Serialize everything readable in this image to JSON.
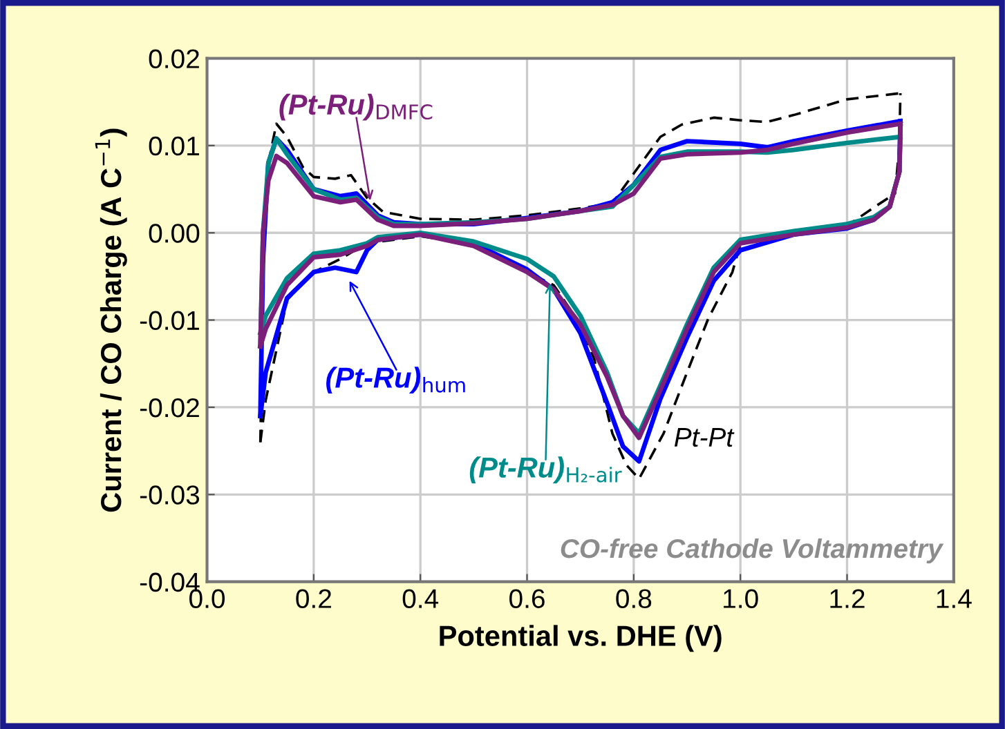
{
  "chart_data": {
    "type": "line",
    "xlabel": "Potential vs. DHE (V)",
    "ylabel": "Current / CO Charge (A C$^{−1}$)",
    "xlim": [
      0.0,
      1.4
    ],
    "ylim": [
      -0.04,
      0.02
    ],
    "xticks": [
      {
        "value": 0.0,
        "label": "0.0"
      },
      {
        "value": 0.2,
        "label": "0.2"
      },
      {
        "value": 0.4,
        "label": "0.4"
      },
      {
        "value": 0.6,
        "label": "0.6"
      },
      {
        "value": 0.8,
        "label": "0.8"
      },
      {
        "value": 1.0,
        "label": "1.0"
      },
      {
        "value": 1.2,
        "label": "1.2"
      },
      {
        "value": 1.4,
        "label": "1.4"
      }
    ],
    "yticks": [
      {
        "value": -0.04,
        "label": "-0.04"
      },
      {
        "value": -0.03,
        "label": "-0.03"
      },
      {
        "value": -0.02,
        "label": "-0.02"
      },
      {
        "value": -0.01,
        "label": "-0.01"
      },
      {
        "value": 0.0,
        "label": "0.00"
      },
      {
        "value": 0.01,
        "label": "0.01"
      },
      {
        "value": 0.02,
        "label": "0.02"
      }
    ],
    "grid": true,
    "marker": "none",
    "series": [
      {
        "name": "Pt-Pt",
        "color": "#000000",
        "line_style": "dashed",
        "x": [
          0.1,
          0.105,
          0.115,
          0.13,
          0.15,
          0.18,
          0.2,
          0.24,
          0.27,
          0.3,
          0.33,
          0.4,
          0.5,
          0.6,
          0.7,
          0.76,
          0.8,
          0.85,
          0.89,
          0.95,
          1.0,
          1.05,
          1.1,
          1.2,
          1.3
        ],
        "values": [
          -0.024,
          -0.005,
          0.008,
          0.0125,
          0.011,
          0.0075,
          0.0064,
          0.0062,
          0.0066,
          0.004,
          0.0024,
          0.0016,
          0.0015,
          0.002,
          0.0028,
          0.0034,
          0.0068,
          0.011,
          0.0124,
          0.0132,
          0.0129,
          0.0127,
          0.0135,
          0.0153,
          0.016
        ]
      },
      {
        "color": "#000000",
        "line_style": "dashed",
        "x": [
          0.1,
          0.11,
          0.15,
          0.2,
          0.25,
          0.3,
          0.4,
          0.5,
          0.6,
          0.65,
          0.7,
          0.726,
          0.76,
          0.786,
          0.81,
          0.856,
          0.9,
          0.94,
          0.985,
          1.0,
          1.1,
          1.2,
          1.25,
          1.29,
          1.298,
          1.3
        ],
        "values": [
          -0.024,
          -0.0192,
          -0.0077,
          -0.0045,
          -0.003,
          -0.0012,
          -0.0004,
          -0.0013,
          -0.0045,
          -0.006,
          -0.0105,
          -0.0145,
          -0.023,
          -0.0266,
          -0.0282,
          -0.023,
          -0.016,
          -0.0098,
          -0.0045,
          -0.0013,
          0.0,
          0.0008,
          0.0029,
          0.0045,
          0.01,
          0.016
        ]
      },
      {
        "name": "(Pt-Ru)$_{hum}$",
        "color": "#0000ff",
        "line_style": "solid",
        "x": [
          0.1,
          0.105,
          0.115,
          0.13,
          0.15,
          0.2,
          0.25,
          0.28,
          0.32,
          0.35,
          0.4,
          0.5,
          0.6,
          0.7,
          0.76,
          0.8,
          0.85,
          0.9,
          1.0,
          1.05,
          1.1,
          1.2,
          1.3
        ],
        "values": [
          -0.021,
          -0.003,
          0.008,
          0.0108,
          0.0095,
          0.005,
          0.0042,
          0.0045,
          0.002,
          0.0012,
          0.001,
          0.001,
          0.0017,
          0.0025,
          0.0035,
          0.0055,
          0.0095,
          0.0105,
          0.0102,
          0.0098,
          0.0105,
          0.0117,
          0.0128
        ]
      },
      {
        "color": "#0000ff",
        "line_style": "solid",
        "x": [
          0.1,
          0.11,
          0.15,
          0.2,
          0.24,
          0.28,
          0.3,
          0.32,
          0.4,
          0.5,
          0.6,
          0.65,
          0.7,
          0.75,
          0.78,
          0.81,
          0.85,
          0.9,
          0.95,
          1.0,
          1.1,
          1.2,
          1.25,
          1.28,
          1.298,
          1.3
        ],
        "values": [
          -0.021,
          -0.016,
          -0.0075,
          -0.0045,
          -0.004,
          -0.0045,
          -0.002,
          -0.0008,
          -0.0002,
          -0.0012,
          -0.0042,
          -0.0065,
          -0.0115,
          -0.0195,
          -0.0245,
          -0.0262,
          -0.019,
          -0.012,
          -0.0055,
          -0.002,
          -0.0002,
          0.0005,
          0.0015,
          0.003,
          0.007,
          0.0128
        ]
      },
      {
        "name": "(Pt-Ru)$_{H₂-air}$",
        "color": "#008b8b",
        "line_style": "solid",
        "x": [
          0.1,
          0.105,
          0.115,
          0.13,
          0.15,
          0.2,
          0.25,
          0.28,
          0.32,
          0.35,
          0.4,
          0.5,
          0.6,
          0.7,
          0.76,
          0.8,
          0.85,
          0.9,
          1.0,
          1.05,
          1.1,
          1.2,
          1.3
        ],
        "values": [
          -0.013,
          0.0,
          0.008,
          0.0108,
          0.009,
          0.005,
          0.0038,
          0.004,
          0.0018,
          0.001,
          0.001,
          0.0012,
          0.0016,
          0.0025,
          0.003,
          0.0055,
          0.0087,
          0.0093,
          0.0093,
          0.0092,
          0.0095,
          0.0103,
          0.011
        ]
      },
      {
        "color": "#008b8b",
        "line_style": "solid",
        "x": [
          0.1,
          0.11,
          0.15,
          0.2,
          0.25,
          0.3,
          0.32,
          0.4,
          0.5,
          0.6,
          0.65,
          0.7,
          0.75,
          0.78,
          0.81,
          0.85,
          0.9,
          0.95,
          1.0,
          1.1,
          1.2,
          1.25,
          1.28,
          1.298,
          1.3
        ],
        "values": [
          -0.0115,
          -0.0095,
          -0.0052,
          -0.0024,
          -0.002,
          -0.0012,
          -0.0005,
          0.0,
          -0.001,
          -0.003,
          -0.005,
          -0.0095,
          -0.016,
          -0.021,
          -0.023,
          -0.0175,
          -0.0105,
          -0.004,
          -0.0008,
          0.0002,
          0.001,
          0.0018,
          0.003,
          0.007,
          0.011
        ]
      },
      {
        "name": "(Pt-Ru)$_{DMFC}$",
        "color": "#7b1f7b",
        "line_style": "solid",
        "x": [
          0.1,
          0.105,
          0.115,
          0.13,
          0.15,
          0.2,
          0.25,
          0.28,
          0.32,
          0.35,
          0.4,
          0.5,
          0.6,
          0.7,
          0.76,
          0.8,
          0.85,
          0.9,
          1.0,
          1.05,
          1.1,
          1.2,
          1.3
        ],
        "values": [
          -0.013,
          0.0,
          0.006,
          0.0088,
          0.008,
          0.0042,
          0.0035,
          0.0038,
          0.0015,
          0.0008,
          0.0008,
          0.0011,
          0.0016,
          0.0025,
          0.0032,
          0.0045,
          0.0085,
          0.009,
          0.0092,
          0.0095,
          0.0102,
          0.0115,
          0.0125
        ]
      },
      {
        "color": "#7b1f7b",
        "line_style": "solid",
        "x": [
          0.1,
          0.11,
          0.15,
          0.2,
          0.25,
          0.3,
          0.32,
          0.4,
          0.5,
          0.6,
          0.65,
          0.7,
          0.75,
          0.78,
          0.81,
          0.85,
          0.9,
          0.95,
          1.0,
          1.1,
          1.2,
          1.25,
          1.28,
          1.298,
          1.3
        ],
        "values": [
          -0.013,
          -0.011,
          -0.006,
          -0.0028,
          -0.0025,
          -0.0015,
          -0.0008,
          -0.0002,
          -0.0015,
          -0.0045,
          -0.0065,
          -0.0105,
          -0.0165,
          -0.021,
          -0.0235,
          -0.018,
          -0.011,
          -0.0045,
          -0.0012,
          -0.0002,
          0.0006,
          0.0015,
          0.003,
          0.007,
          0.0125
        ]
      }
    ],
    "annotations": [
      "CO-free Cathode Voltammetry"
    ]
  }
}
